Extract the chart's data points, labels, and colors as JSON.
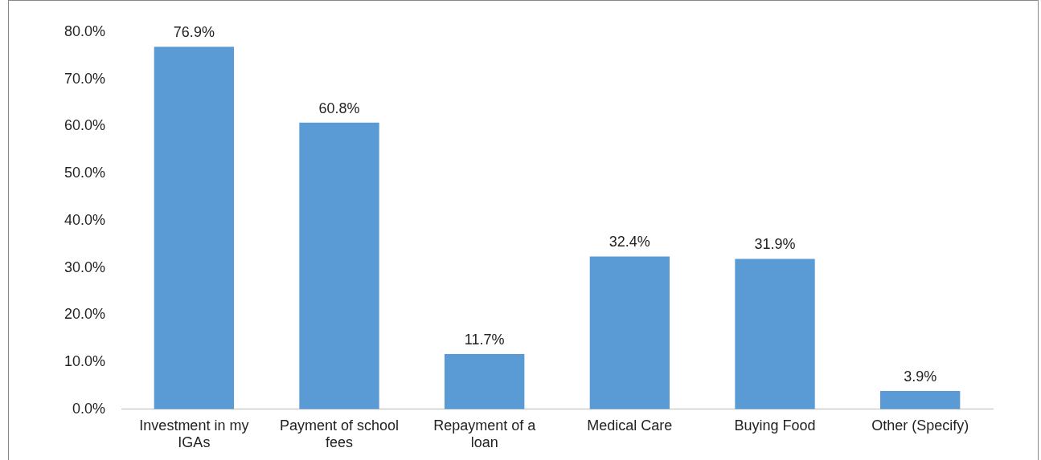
{
  "chart_data": {
    "type": "bar",
    "categories": [
      "Investment in my IGAs",
      "Payment of school fees",
      "Repayment of a loan",
      "Medical Care",
      "Buying Food",
      "Other (Specify)"
    ],
    "values": [
      76.9,
      60.8,
      11.7,
      32.4,
      31.9,
      3.9
    ],
    "value_labels": [
      "76.9%",
      "60.8%",
      "11.7%",
      "32.4%",
      "31.9%",
      "3.9%"
    ],
    "color": "#5b9bd5",
    "ylim": [
      0,
      80
    ],
    "yticks": [
      {
        "value": 0,
        "label": "0.0%"
      },
      {
        "value": 10,
        "label": "10.0%"
      },
      {
        "value": 20,
        "label": "20.0%"
      },
      {
        "value": 30,
        "label": "30.0%"
      },
      {
        "value": 40,
        "label": "40.0%"
      },
      {
        "value": 50,
        "label": "50.0%"
      },
      {
        "value": 60,
        "label": "60.0%"
      },
      {
        "value": 70,
        "label": "70.0%"
      },
      {
        "value": 80,
        "label": "80.0%"
      }
    ],
    "grid": false,
    "legend": false
  }
}
